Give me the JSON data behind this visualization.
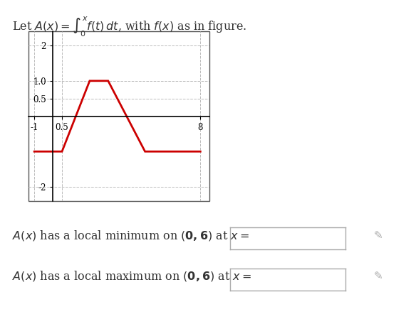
{
  "title_text": "Let $A(x) = \\int_0^x f(t)\\,dt$, with $f(x)$ as in figure.",
  "graph_xlim": [
    -1.2,
    9
  ],
  "graph_ylim": [
    -2.3,
    2.3
  ],
  "fx_x": [
    -1,
    0.5,
    1.5,
    2.5,
    3.5,
    4.5,
    5.5,
    8
  ],
  "fx_y": [
    -1,
    -1,
    1,
    1,
    1,
    -1,
    -1,
    -1
  ],
  "line_color": "#cc0000",
  "line_width": 2.0,
  "grid_color": "#bbbbbb",
  "grid_style": "--",
  "background_color": "#ffffff",
  "plot_bg_color": "#ffffff",
  "question1": "$A(x)$ has a local minimum on $(\\mathbf{0, 6})$ at $x =$",
  "question2": "$A(x)$ has a local maximum on $(\\mathbf{0, 6})$ at $x =$",
  "text_color": "#333333",
  "font_size": 11.5
}
